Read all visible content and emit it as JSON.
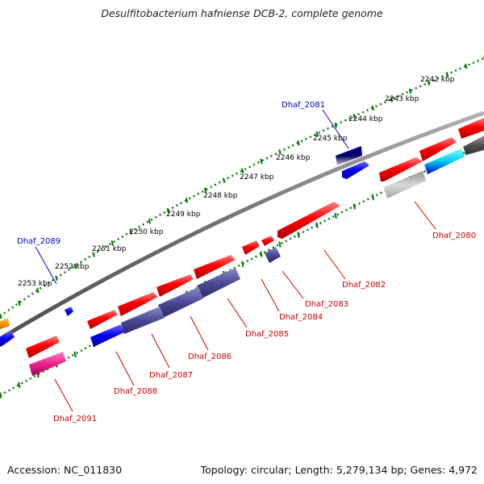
{
  "title": "Desulfitobacterium hafniense DCB-2, complete genome",
  "footer": {
    "accession": "Accession: NC_011830",
    "topology": "Topology: circular; Length: 5,279,134 bp; Genes: 4,972"
  },
  "colors": {
    "backbone": "#808080",
    "ticks": "#007700",
    "forward_gene": "#ee0000",
    "reverse_gene_dark": "#44448a",
    "highlight_label_blue": "#0000cc",
    "label_red": "#cc0000"
  },
  "scale_labels": [
    "2242 kbp",
    "2243 kbp",
    "2244 kbp",
    "2245 kbp",
    "2246 kbp",
    "2247 kbp",
    "2248 kbp",
    "2249 kbp",
    "2250 kbp",
    "2251 kbp",
    "2252 kbp",
    "2253 kbp"
  ],
  "gene_labels": [
    {
      "text": "Dhaf_2081",
      "color": "blue"
    },
    {
      "text": "Dhaf_2089",
      "color": "blue"
    },
    {
      "text": "Dhaf_2080",
      "color": "red"
    },
    {
      "text": "Dhaf_2082",
      "color": "red"
    },
    {
      "text": "Dhaf_2083",
      "color": "red"
    },
    {
      "text": "Dhaf_2084",
      "color": "red"
    },
    {
      "text": "Dhaf_2085",
      "color": "red"
    },
    {
      "text": "Dhaf_2086",
      "color": "red"
    },
    {
      "text": "Dhaf_2087",
      "color": "red"
    },
    {
      "text": "Dhaf_2088",
      "color": "red"
    },
    {
      "text": "Dhaf_2091",
      "color": "red"
    }
  ]
}
